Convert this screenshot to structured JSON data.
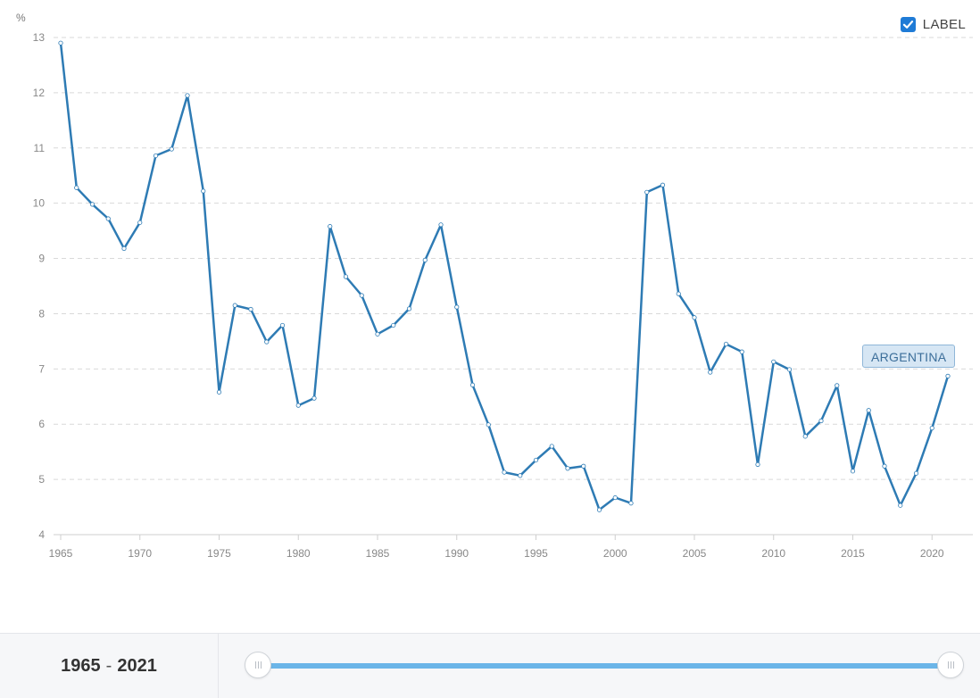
{
  "chart_data": {
    "type": "line",
    "ylabel": "%",
    "xlim": [
      1965,
      2021
    ],
    "ylim": [
      4,
      13
    ],
    "y_ticks": [
      4,
      5,
      6,
      7,
      8,
      9,
      10,
      11,
      12,
      13
    ],
    "x_ticks": [
      1965,
      1970,
      1975,
      1980,
      1985,
      1990,
      1995,
      2000,
      2005,
      2010,
      2015,
      2020
    ],
    "grid": true,
    "series": [
      {
        "name": "ARGENTINA",
        "color": "#2e7bb4",
        "x": [
          1965,
          1966,
          1967,
          1968,
          1969,
          1970,
          1971,
          1972,
          1973,
          1974,
          1975,
          1976,
          1977,
          1978,
          1979,
          1980,
          1981,
          1982,
          1983,
          1984,
          1985,
          1986,
          1987,
          1988,
          1989,
          1990,
          1991,
          1992,
          1993,
          1994,
          1995,
          1996,
          1997,
          1998,
          1999,
          2000,
          2001,
          2002,
          2003,
          2004,
          2005,
          2006,
          2007,
          2008,
          2009,
          2010,
          2011,
          2012,
          2013,
          2014,
          2015,
          2016,
          2017,
          2018,
          2019,
          2020,
          2021
        ],
        "values": [
          12.9,
          10.28,
          9.98,
          9.72,
          9.18,
          9.65,
          10.86,
          10.98,
          11.95,
          10.22,
          6.58,
          8.15,
          8.08,
          7.49,
          7.79,
          6.34,
          6.47,
          9.58,
          8.67,
          8.33,
          7.63,
          7.79,
          8.09,
          8.97,
          9.61,
          8.12,
          6.71,
          5.99,
          5.13,
          5.07,
          5.35,
          5.6,
          5.2,
          5.24,
          4.45,
          4.67,
          4.57,
          10.2,
          10.33,
          8.36,
          7.93,
          6.94,
          7.45,
          7.31,
          5.27,
          7.13,
          6.99,
          5.78,
          6.06,
          6.7,
          5.15,
          6.25,
          5.24,
          4.53,
          5.11,
          5.93,
          6.87
        ]
      }
    ]
  },
  "legend": {
    "label": "LABEL",
    "checked": true
  },
  "series_tag": "ARGENTINA",
  "range": {
    "start": "1965",
    "separator": "-",
    "end": "2021"
  }
}
